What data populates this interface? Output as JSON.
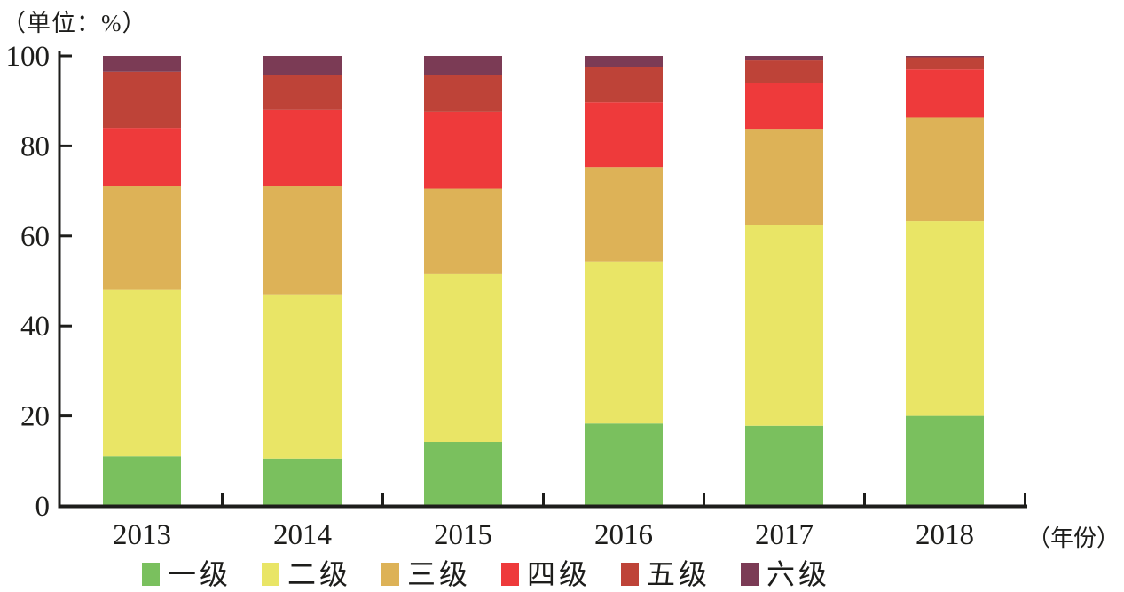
{
  "unit_label": "（单位：%）",
  "x_axis_label": "（年份）",
  "chart_data": {
    "type": "bar",
    "stacked": true,
    "title": "",
    "xlabel": "（年份）",
    "ylabel": "（单位：%）",
    "categories": [
      "2013",
      "2014",
      "2015",
      "2016",
      "2017",
      "2018"
    ],
    "series": [
      {
        "name": "一级",
        "color": "#7AC05E",
        "values": [
          11.0,
          10.5,
          14.2,
          18.3,
          17.8,
          20.0
        ]
      },
      {
        "name": "二级",
        "color": "#E9E566",
        "values": [
          37.0,
          36.5,
          37.3,
          36.0,
          44.7,
          43.3
        ]
      },
      {
        "name": "三级",
        "color": "#DDB257",
        "values": [
          23.0,
          24.0,
          19.0,
          21.0,
          21.3,
          23.0
        ]
      },
      {
        "name": "四级",
        "color": "#EE3A3B",
        "values": [
          13.0,
          17.0,
          17.1,
          14.4,
          10.1,
          10.7
        ]
      },
      {
        "name": "五级",
        "color": "#BE4338",
        "values": [
          12.5,
          7.8,
          8.2,
          7.9,
          5.1,
          2.7
        ]
      },
      {
        "name": "六级",
        "color": "#7B3B55",
        "values": [
          3.5,
          4.2,
          4.2,
          2.4,
          1.0,
          0.3
        ]
      }
    ],
    "ylim": [
      0,
      100
    ],
    "yticks": [
      0,
      20,
      40,
      60,
      80,
      100
    ],
    "grid": false,
    "legend_position": "bottom"
  },
  "colors": {
    "axis": "#1d1d1b",
    "text": "#1d1d1b",
    "background": "#ffffff"
  }
}
